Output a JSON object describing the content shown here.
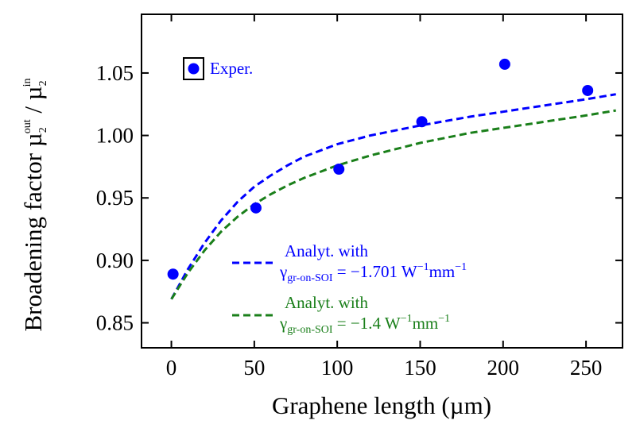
{
  "chart_data": {
    "type": "scatter",
    "xlabel": "Graphene length (µm)",
    "ylabel": {
      "main": "Broadening factor ",
      "mu": "µ",
      "sub": "2",
      "sup_out": "out",
      "slash": " / ",
      "sup_in": "in"
    },
    "xlim": [
      -18,
      272
    ],
    "ylim": [
      0.83,
      1.097
    ],
    "x_ticks": [
      0,
      50,
      100,
      150,
      200,
      250
    ],
    "x_tick_labels": [
      "0",
      "50",
      "100",
      "150",
      "200",
      "250"
    ],
    "y_ticks": [
      0.85,
      0.9,
      0.95,
      1.0,
      1.05
    ],
    "y_tick_labels": [
      "0.85",
      "0.90",
      "0.95",
      "1.00",
      "1.05"
    ],
    "grid": false,
    "series": [
      {
        "name": "Exper.",
        "kind": "markers",
        "color": "#0000ff",
        "x": [
          1,
          51,
          101,
          151,
          201,
          251
        ],
        "y": [
          0.889,
          0.942,
          0.973,
          1.011,
          1.057,
          1.036
        ]
      },
      {
        "name": "Analyt. with γgr-on-SOI = −1.701 W⁻¹mm⁻¹",
        "kind": "dashed-line",
        "color": "#0000ff",
        "x": [
          0,
          10,
          20,
          30,
          40,
          50,
          60,
          70,
          80,
          100,
          120,
          150,
          180,
          200,
          220,
          250,
          268
        ],
        "y": [
          0.869,
          0.893,
          0.914,
          0.932,
          0.947,
          0.959,
          0.968,
          0.976,
          0.983,
          0.993,
          1.0,
          1.008,
          1.015,
          1.019,
          1.023,
          1.029,
          1.033
        ]
      },
      {
        "name": "Analyt. with γgr-on-SOI = −1.4 W⁻¹mm⁻¹",
        "kind": "dashed-line",
        "color": "#1a7f1a",
        "x": [
          0,
          10,
          20,
          30,
          40,
          50,
          60,
          70,
          80,
          100,
          120,
          150,
          180,
          200,
          220,
          250,
          268
        ],
        "y": [
          0.869,
          0.89,
          0.908,
          0.923,
          0.935,
          0.945,
          0.953,
          0.96,
          0.966,
          0.976,
          0.984,
          0.994,
          1.002,
          1.006,
          1.01,
          1.016,
          1.02
        ]
      }
    ],
    "legend": {
      "placement": "top-left and bottom-right",
      "exper_label": "Exper.",
      "blue_line1": "Analyt. with",
      "blue_gamma": "γ",
      "blue_gamma_sub": "gr-on-SOI",
      "blue_value": " = −1.701 W",
      "blue_exp1": "−1",
      "blue_mm": "mm",
      "blue_exp2": "−1",
      "green_line1": "Analyt. with",
      "green_gamma": "γ",
      "green_gamma_sub": "gr-on-SOI",
      "green_value": " = −1.4 W",
      "green_exp1": "−1",
      "green_mm": "mm",
      "green_exp2": "−1"
    },
    "colors": {
      "experimental": "#0000ff",
      "analyt_blue": "#0000ff",
      "analyt_green": "#1a7f1a",
      "axis": "#000000"
    }
  }
}
